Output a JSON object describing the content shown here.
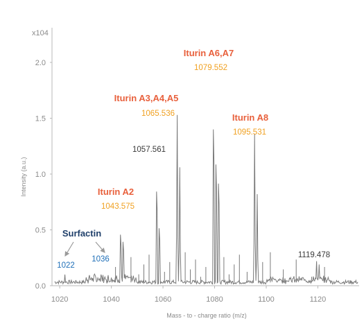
{
  "chart_data": {
    "type": "line",
    "title": "",
    "xlabel": "Mass - to - charge ratio  (m/z)",
    "ylabel": "Intensity  (a.u.)",
    "y_multiplier": "x104",
    "xlim": [
      1017,
      1136
    ],
    "ylim": [
      0,
      2.08
    ],
    "x_ticks": [
      "1020",
      "1040",
      "1060",
      "1080",
      "1100",
      "1120"
    ],
    "y_ticks": [
      "0.0",
      "0.5",
      "1.0",
      "1.5",
      "2.0"
    ],
    "grid": false,
    "peaks": [
      {
        "x": 1022.0,
        "y": 0.1
      },
      {
        "x": 1036.0,
        "y": 0.1
      },
      {
        "x": 1043.6,
        "y": 0.64
      },
      {
        "x": 1044.6,
        "y": 0.55
      },
      {
        "x": 1057.6,
        "y": 1.18
      },
      {
        "x": 1058.6,
        "y": 0.72
      },
      {
        "x": 1065.5,
        "y": 1.53
      },
      {
        "x": 1066.5,
        "y": 1.06
      },
      {
        "x": 1079.6,
        "y": 1.96
      },
      {
        "x": 1080.6,
        "y": 1.52
      },
      {
        "x": 1081.6,
        "y": 1.28
      },
      {
        "x": 1095.5,
        "y": 1.36
      },
      {
        "x": 1096.5,
        "y": 0.82
      },
      {
        "x": 1119.5,
        "y": 0.22
      },
      {
        "x": 1120.5,
        "y": 0.19
      }
    ],
    "annotations": [
      {
        "name": "Iturin A2",
        "mz": "1043.575"
      },
      {
        "name": "Iturin A3,A4,A5",
        "mz": "1065.536"
      },
      {
        "name": "Iturin A6,A7",
        "mz": "1079.552"
      },
      {
        "name": "Iturin A8",
        "mz": "1095.531"
      },
      {
        "name": "",
        "mz": "1057.561"
      },
      {
        "name": "",
        "mz": "1119.478"
      },
      {
        "name": "Surfactin",
        "mz": ""
      },
      {
        "name": "",
        "mz": "1022"
      },
      {
        "name": "",
        "mz": "1036"
      }
    ]
  },
  "colors": {
    "spectrum": "#7a7a7a",
    "axis": "#b8b8b8",
    "iturin_name": "#e8603c",
    "iturin_mz": "#f0a020",
    "surfactin": "#1f3f6a",
    "surfactin_mz": "#1f6fb8",
    "plain_mz": "#3a3a3a"
  }
}
